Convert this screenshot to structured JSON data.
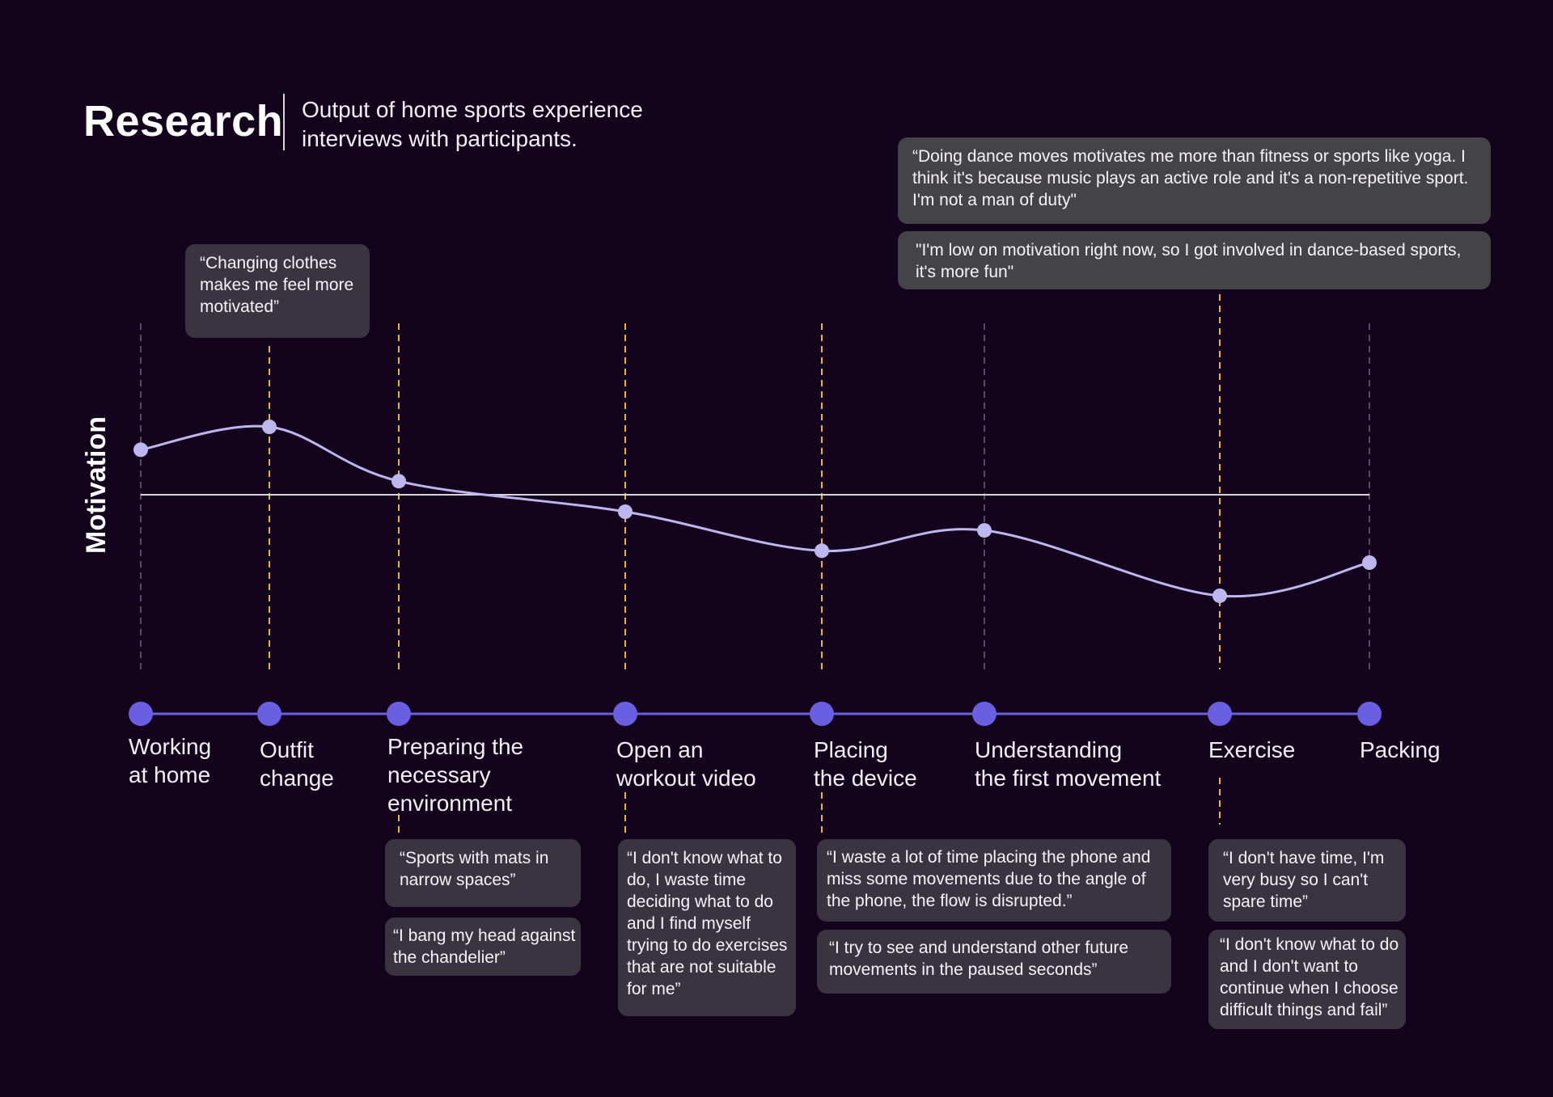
{
  "header": {
    "title": "Research",
    "subtitle": "Output of home sports experience interviews with participants."
  },
  "axis": {
    "y_label": "Motivation"
  },
  "colors": {
    "background": "#14031d",
    "curve": "#bcb8ef",
    "timeline": "#6a5fe0",
    "highlight_guide": "#e8b630",
    "neutral_guide": "#5a4a66",
    "baseline": "#d8d4dc",
    "quote_box": "#3a3441",
    "quote_box_top": "#444446"
  },
  "chart_data": {
    "type": "line",
    "ylabel": "Motivation",
    "baseline_value": 0,
    "categories": [
      "Working at home",
      "Outfit change",
      "Preparing the necessary environment",
      "Open an workout video",
      "Placing the device",
      "Understanding the first movement",
      "Exercise",
      "Packing"
    ],
    "values": [
      0.53,
      0.8,
      0.16,
      -0.2,
      -0.66,
      -0.42,
      -1.19,
      -0.8
    ],
    "highlighted_stages": [
      "Outfit change",
      "Preparing the necessary environment",
      "Open an workout video",
      "Placing the device",
      "Exercise"
    ]
  },
  "stages": [
    {
      "id": "working",
      "label": "Working\nat home"
    },
    {
      "id": "outfit",
      "label": "Outfit\nchange"
    },
    {
      "id": "preparing",
      "label": "Preparing the\nnecessary\nenvironment"
    },
    {
      "id": "video",
      "label": "Open an\nworkout video"
    },
    {
      "id": "placing",
      "label": "Placing\nthe device"
    },
    {
      "id": "understanding",
      "label": "Understanding\nthe first movement"
    },
    {
      "id": "exercise",
      "label": "Exercise"
    },
    {
      "id": "packing",
      "label": "Packing"
    }
  ],
  "quotes": {
    "outfit_1": "“Changing clothes makes me feel more motivated”",
    "exercise_top_1": "“Doing dance moves motivates me more than fitness or sports like yoga. I think it's because music plays an active role and it's a non-repetitive sport. I'm not a man of duty\"",
    "exercise_top_2": "\"I'm low on motivation right now, so I got involved in dance-based sports, it's more fun\"",
    "preparing_1": "“Sports with mats in narrow spaces”",
    "preparing_2": "“I bang my head against the chandelier”",
    "video_1": "“I don't know what to do, I waste time deciding what to do and I find myself trying to do exercises that are not suitable for me”",
    "placing_1": "“I waste a lot of time placing the phone and miss some movements due to the angle of the phone, the flow is disrupted.”",
    "placing_2": "“I try to see and understand other future movements in the paused seconds”",
    "exercise_1": "“I don't have time, I'm very busy so I can't spare time”",
    "exercise_2": "“I don't know what to do and I don't want to continue when I choose difficult things and fail”"
  }
}
